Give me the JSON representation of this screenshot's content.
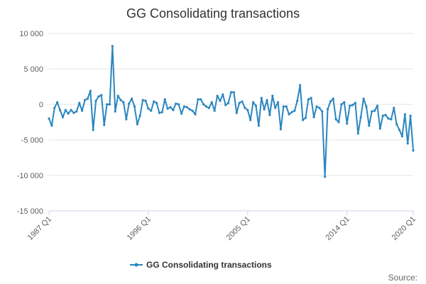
{
  "chart_data": {
    "type": "line",
    "title": "GG Consolidating transactions",
    "legend": "top-bottom",
    "legend_placement": "bottom-center",
    "source_label": "Source:",
    "ylim": [
      -15000,
      10000
    ],
    "y_ticks": [
      10000,
      5000,
      0,
      -5000,
      -10000,
      -15000
    ],
    "y_tick_labels": [
      "10 000",
      "5 000",
      "0",
      "-5 000",
      "-10 000",
      "-15 000"
    ],
    "x_tick_labels": [
      "1987 Q1",
      "1996 Q1",
      "2005 Q1",
      "2014 Q1",
      "2020 Q1"
    ],
    "x_tick_indices": [
      0,
      36,
      72,
      108,
      132
    ],
    "grid": true,
    "colors": {
      "series": "#2a86bf",
      "grid": "#e6e6e6",
      "axis": "#ccd6eb"
    },
    "series": [
      {
        "name": "GG Consolidating transactions",
        "start": "1987 Q1",
        "values": [
          -2000,
          -3000,
          -500,
          300,
          -800,
          -1800,
          -800,
          -1300,
          -800,
          -1200,
          -1000,
          200,
          -900,
          600,
          800,
          1900,
          -3600,
          500,
          1100,
          1300,
          -2900,
          0,
          0,
          8200,
          -1000,
          1200,
          600,
          300,
          -2100,
          100,
          800,
          -300,
          -2800,
          -1600,
          600,
          500,
          -600,
          -900,
          400,
          200,
          -1200,
          -1100,
          700,
          -600,
          -400,
          -800,
          100,
          0,
          -1300,
          -300,
          -400,
          -700,
          -900,
          -1400,
          700,
          700,
          0,
          -300,
          -500,
          300,
          -900,
          1200,
          500,
          1400,
          -100,
          200,
          1700,
          1700,
          -1200,
          200,
          400,
          -500,
          -800,
          -2200,
          300,
          -200,
          -3000,
          900,
          -700,
          600,
          -1500,
          1200,
          -500,
          300,
          -3500,
          -300,
          -300,
          -1400,
          -1100,
          -900,
          500,
          2700,
          -2200,
          -1900,
          700,
          900,
          -1800,
          -300,
          -500,
          -1000,
          -10200,
          -700,
          400,
          800,
          -2100,
          -2500,
          0,
          300,
          -2700,
          -200,
          -100,
          200,
          -4100,
          -1800,
          800,
          -300,
          -3000,
          -1000,
          -900,
          -200,
          -3400,
          -1600,
          -1500,
          -2000,
          -2100,
          -500,
          -2800,
          -3600,
          -4500,
          -1400,
          -5500,
          -1600,
          -6500
        ]
      }
    ]
  }
}
